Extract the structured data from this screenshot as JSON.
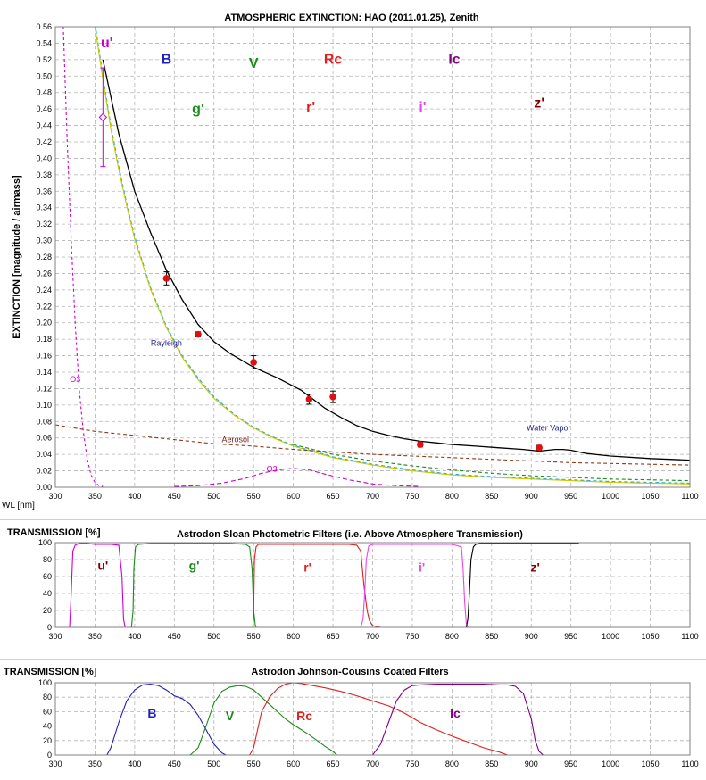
{
  "chart_data": [
    {
      "type": "line",
      "title": "ATMOSPHERIC EXTINCTION: HAO (2011.01.25), Zenith",
      "xlabel": "WL [nm]",
      "ylabel": "EXTINCTION [magnitude / airmass]",
      "xlim": [
        300,
        1100
      ],
      "ylim": [
        0,
        0.56
      ],
      "xticks": [
        "300",
        "350",
        "400",
        "450",
        "500",
        "550",
        "600",
        "650",
        "700",
        "750",
        "800",
        "850",
        "900",
        "950",
        "1000",
        "1050",
        "1100"
      ],
      "yticks": [
        "0.00",
        "0.02",
        "0.04",
        "0.06",
        "0.08",
        "0.10",
        "0.12",
        "0.14",
        "0.16",
        "0.18",
        "0.20",
        "0.22",
        "0.24",
        "0.26",
        "0.28",
        "0.30",
        "0.32",
        "0.34",
        "0.36",
        "0.38",
        "0.40",
        "0.42",
        "0.44",
        "0.46",
        "0.48",
        "0.50",
        "0.52",
        "0.54",
        "0.56"
      ],
      "grid": true,
      "band_labels": [
        {
          "text": "u'",
          "x": 365,
          "y": 0.535,
          "color": "#cc00cc"
        },
        {
          "text": "B",
          "x": 440,
          "y": 0.515,
          "color": "#1f1fbf"
        },
        {
          "text": "V",
          "x": 550,
          "y": 0.51,
          "color": "#1a8a1a"
        },
        {
          "text": "Rc",
          "x": 650,
          "y": 0.515,
          "color": "#e02020"
        },
        {
          "text": "Ic",
          "x": 803,
          "y": 0.515,
          "color": "#800080"
        },
        {
          "text": "g'",
          "x": 480,
          "y": 0.455,
          "color": "#1a8a1a"
        },
        {
          "text": "r'",
          "x": 622,
          "y": 0.457,
          "color": "#e02020"
        },
        {
          "text": "i'",
          "x": 763,
          "y": 0.457,
          "color": "#ee44ee"
        },
        {
          "text": "z'",
          "x": 910,
          "y": 0.462,
          "color": "#800000"
        }
      ],
      "annotations": [
        {
          "text": "Rayleigh",
          "x": 440,
          "y": 0.172,
          "color": "#1f1f8f"
        },
        {
          "text": "O3",
          "x": 325,
          "y": 0.128,
          "color": "#cc00cc"
        },
        {
          "text": "Aerosol",
          "x": 527,
          "y": 0.055,
          "color": "#7a2020"
        },
        {
          "text": "O3",
          "x": 573,
          "y": 0.019,
          "color": "#cc00cc"
        },
        {
          "text": "Water Vapor",
          "x": 922,
          "y": 0.069,
          "color": "#1f1f8f"
        }
      ],
      "series": [
        {
          "key": "total",
          "color": "#000000",
          "dash": "",
          "x": [
            360,
            380,
            400,
            420,
            440,
            460,
            480,
            500,
            520,
            550,
            580,
            610,
            640,
            660,
            680,
            700,
            720,
            740,
            760,
            780,
            800,
            830,
            860,
            890,
            910,
            930,
            940,
            950,
            970,
            1000,
            1050,
            1100
          ],
          "y": [
            0.52,
            0.43,
            0.36,
            0.31,
            0.264,
            0.228,
            0.198,
            0.177,
            0.163,
            0.146,
            0.133,
            0.118,
            0.096,
            0.085,
            0.075,
            0.068,
            0.063,
            0.059,
            0.056,
            0.054,
            0.052,
            0.05,
            0.048,
            0.046,
            0.044,
            0.046,
            0.046,
            0.045,
            0.041,
            0.038,
            0.035,
            0.033
          ]
        },
        {
          "key": "rayleigh",
          "color": "#2aa8c8",
          "dash": "4 3",
          "x": [
            340,
            350,
            360,
            370,
            380,
            390,
            400,
            420,
            440,
            460,
            480,
            500,
            525,
            550,
            575,
            600,
            650,
            700,
            750,
            800,
            850,
            900,
            950,
            1000,
            1050,
            1100
          ],
          "y": [
            0.6,
            0.565,
            0.5,
            0.44,
            0.39,
            0.345,
            0.305,
            0.243,
            0.196,
            0.16,
            0.133,
            0.11,
            0.089,
            0.073,
            0.061,
            0.051,
            0.037,
            0.028,
            0.021,
            0.016,
            0.013,
            0.011,
            0.009,
            0.007,
            0.006,
            0.005
          ]
        },
        {
          "key": "rayleigh2",
          "color": "#c8c800",
          "dash": "",
          "x": [
            340,
            350,
            360,
            370,
            380,
            390,
            400,
            420,
            440,
            460,
            480,
            500,
            525,
            550,
            575,
            600,
            650,
            700,
            750,
            800,
            850,
            900,
            950,
            1000,
            1050,
            1100
          ],
          "y": [
            0.6,
            0.56,
            0.496,
            0.436,
            0.386,
            0.342,
            0.302,
            0.241,
            0.194,
            0.158,
            0.131,
            0.108,
            0.088,
            0.072,
            0.06,
            0.05,
            0.036,
            0.027,
            0.02,
            0.015,
            0.012,
            0.01,
            0.008,
            0.006,
            0.005,
            0.004
          ]
        },
        {
          "key": "green",
          "color": "#1a8a1a",
          "dash": "4 3",
          "x": [
            600,
            650,
            700,
            750,
            800,
            850,
            900,
            950,
            1000,
            1050,
            1100
          ],
          "y": [
            0.052,
            0.04,
            0.032,
            0.026,
            0.021,
            0.017,
            0.014,
            0.012,
            0.01,
            0.009,
            0.008
          ]
        },
        {
          "key": "aerosol",
          "color": "#8b3a1a",
          "dash": "4 3",
          "x": [
            300,
            350,
            400,
            450,
            500,
            550,
            600,
            650,
            700,
            750,
            800,
            850,
            900,
            950,
            1000,
            1050,
            1100
          ],
          "y": [
            0.076,
            0.068,
            0.063,
            0.058,
            0.053,
            0.05,
            0.046,
            0.043,
            0.04,
            0.038,
            0.036,
            0.034,
            0.032,
            0.03,
            0.029,
            0.028,
            0.027
          ]
        },
        {
          "key": "o3uv",
          "color": "#cc00cc",
          "dash": "3 3",
          "x": [
            310,
            315,
            320,
            325,
            330,
            335,
            340,
            345,
            350,
            355,
            360
          ],
          "y": [
            0.56,
            0.42,
            0.3,
            0.2,
            0.12,
            0.07,
            0.035,
            0.015,
            0.006,
            0.002,
            0.001
          ]
        },
        {
          "key": "o3chappuis",
          "color": "#cc00cc",
          "dash": "5 3",
          "x": [
            450,
            480,
            510,
            540,
            560,
            580,
            600,
            620,
            640,
            670,
            700,
            730,
            760
          ],
          "y": [
            0.001,
            0.002,
            0.005,
            0.011,
            0.017,
            0.021,
            0.023,
            0.021,
            0.016,
            0.009,
            0.004,
            0.002,
            0.001
          ]
        }
      ],
      "points": {
        "x": [
          360,
          440,
          480,
          550,
          620,
          650,
          760,
          910
        ],
        "y": [
          0.45,
          0.254,
          0.186,
          0.152,
          0.107,
          0.11,
          0.052,
          0.048
        ],
        "err": [
          0.06,
          0.008,
          0.003,
          0.008,
          0.006,
          0.007,
          0.003,
          0.003
        ],
        "color": "#e01010"
      }
    },
    {
      "type": "line",
      "title": "Astrodon Sloan Photometric Filters (i.e. Above Atmosphere Transmission)",
      "ylabel": "TRANSMISSION [%]",
      "xlim": [
        300,
        1100
      ],
      "ylim": [
        0,
        100
      ],
      "xticks": [
        "300",
        "350",
        "400",
        "450",
        "500",
        "550",
        "600",
        "650",
        "700",
        "750",
        "800",
        "850",
        "900",
        "950",
        "1000",
        "1050",
        "1100"
      ],
      "yticks": [
        "0",
        "20",
        "40",
        "60",
        "80",
        "100"
      ],
      "grid": true,
      "series": [
        {
          "name": "u'",
          "color": "#cc00cc",
          "x": [
            318,
            320,
            322,
            325,
            330,
            340,
            350,
            360,
            370,
            380,
            384,
            386,
            388
          ],
          "y": [
            0,
            40,
            90,
            97,
            99,
            99,
            98,
            98,
            98,
            97,
            60,
            10,
            0
          ]
        },
        {
          "name": "g'",
          "color": "#1a8a1a",
          "x": [
            396,
            398,
            399,
            401,
            405,
            420,
            450,
            480,
            500,
            520,
            540,
            545,
            548,
            550,
            552,
            553
          ],
          "y": [
            0,
            20,
            70,
            95,
            98,
            99,
            99,
            99,
            99,
            99,
            98,
            95,
            70,
            20,
            3,
            0
          ]
        },
        {
          "name": "r'",
          "color": "#e02020",
          "x": [
            549,
            550,
            551,
            553,
            556,
            580,
            600,
            620,
            650,
            670,
            680,
            685,
            687,
            689,
            691,
            693,
            696,
            700,
            710
          ],
          "y": [
            0,
            15,
            80,
            95,
            98,
            98,
            98,
            98,
            98,
            98,
            97,
            90,
            70,
            50,
            35,
            20,
            8,
            2,
            0
          ]
        },
        {
          "name": "i'",
          "color": "#ee44ee",
          "x": [
            685,
            688,
            690,
            692,
            695,
            700,
            720,
            740,
            760,
            780,
            800,
            812,
            814,
            816,
            818,
            820
          ],
          "y": [
            0,
            10,
            40,
            80,
            96,
            98,
            98,
            98,
            98,
            98,
            98,
            95,
            70,
            30,
            5,
            0
          ]
        },
        {
          "name": "z'",
          "color": "#000000",
          "x": [
            818,
            820,
            822,
            824,
            827,
            830,
            835,
            840,
            860,
            880,
            900,
            920,
            940,
            950,
            960
          ],
          "y": [
            0,
            10,
            40,
            80,
            95,
            98,
            99,
            99,
            99,
            99,
            99,
            99,
            99,
            99,
            99
          ]
        }
      ],
      "series_labels": [
        {
          "text": "u'",
          "x": 360,
          "y": 68,
          "color": "#800000"
        },
        {
          "text": "g'",
          "x": 475,
          "y": 68,
          "color": "#1a8a1a"
        },
        {
          "text": "r'",
          "x": 618,
          "y": 66,
          "color": "#e02020"
        },
        {
          "text": "i'",
          "x": 762,
          "y": 66,
          "color": "#ee44ee"
        },
        {
          "text": "z'",
          "x": 905,
          "y": 66,
          "color": "#800000"
        }
      ]
    },
    {
      "type": "line",
      "title": "Astrodon Johnson-Cousins Coated Filters",
      "ylabel": "TRANSMISSION [%]",
      "xlim": [
        300,
        1100
      ],
      "ylim": [
        0,
        100
      ],
      "xticks": [
        "300",
        "350",
        "400",
        "450",
        "500",
        "550",
        "600",
        "650",
        "700",
        "750",
        "800",
        "850",
        "900",
        "950",
        "1000",
        "1050",
        "1100"
      ],
      "yticks": [
        "0",
        "20",
        "40",
        "60",
        "80",
        "100"
      ],
      "grid": true,
      "series": [
        {
          "name": "B",
          "color": "#1f1fbf",
          "x": [
            365,
            370,
            380,
            390,
            400,
            410,
            420,
            430,
            440,
            450,
            460,
            470,
            480,
            490,
            500,
            510,
            515
          ],
          "y": [
            0,
            10,
            45,
            75,
            90,
            97,
            98,
            96,
            90,
            82,
            78,
            70,
            55,
            35,
            15,
            3,
            0
          ]
        },
        {
          "name": "V",
          "color": "#1a8a1a",
          "x": [
            470,
            480,
            490,
            500,
            510,
            520,
            530,
            540,
            550,
            560,
            570,
            580,
            590,
            600,
            610,
            620,
            630,
            640,
            650,
            655
          ],
          "y": [
            0,
            10,
            40,
            72,
            88,
            94,
            96,
            95,
            90,
            80,
            70,
            60,
            50,
            42,
            35,
            28,
            20,
            12,
            5,
            0
          ]
        },
        {
          "name": "Rc",
          "color": "#e02020",
          "x": [
            545,
            550,
            555,
            560,
            570,
            580,
            590,
            600,
            610,
            620,
            640,
            660,
            680,
            700,
            720,
            740,
            760,
            780,
            800,
            820,
            840,
            860,
            870
          ],
          "y": [
            0,
            10,
            35,
            60,
            80,
            92,
            98,
            100,
            99,
            97,
            93,
            88,
            82,
            75,
            68,
            58,
            45,
            35,
            26,
            18,
            10,
            4,
            0
          ]
        },
        {
          "name": "Ic",
          "color": "#800080",
          "x": [
            700,
            710,
            720,
            730,
            740,
            750,
            760,
            780,
            800,
            820,
            840,
            860,
            870,
            880,
            890,
            900,
            905,
            910,
            915
          ],
          "y": [
            0,
            15,
            45,
            75,
            90,
            96,
            97,
            98,
            98,
            98,
            98,
            97,
            97,
            95,
            85,
            50,
            20,
            5,
            0
          ]
        }
      ],
      "series_labels": [
        {
          "text": "B",
          "x": 422,
          "y": 52,
          "color": "#1f1fbf"
        },
        {
          "text": "V",
          "x": 520,
          "y": 48,
          "color": "#1a8a1a"
        },
        {
          "text": "Rc",
          "x": 614,
          "y": 48,
          "color": "#e02020"
        },
        {
          "text": "Ic",
          "x": 804,
          "y": 52,
          "color": "#800080"
        }
      ]
    }
  ]
}
